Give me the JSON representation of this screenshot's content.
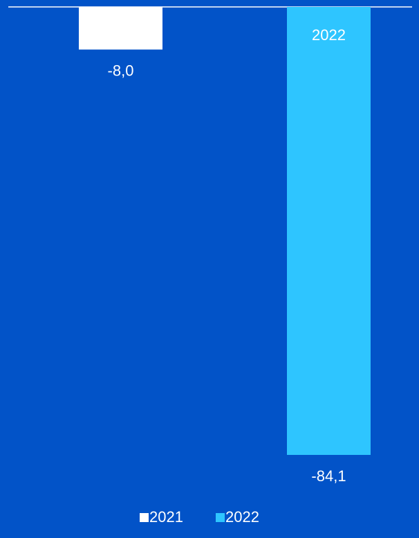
{
  "colors": {
    "background": "#0253C8",
    "baseline": "#FFFFFF",
    "text": "#FFFFFF"
  },
  "chart_data": {
    "type": "bar",
    "title": "",
    "xlabel": "",
    "ylabel": "",
    "ylim": [
      -84.1,
      0
    ],
    "grid": false,
    "legend_placement": "bottom-center",
    "series": [
      {
        "name": "2021",
        "color": "#FFFFFF",
        "values": [
          -8.0
        ],
        "value_labels": [
          "-8,0"
        ],
        "inside_label": ""
      },
      {
        "name": "2022",
        "color": "#2EC5FF",
        "values": [
          -84.1
        ],
        "value_labels": [
          "-84,1"
        ],
        "inside_label": "2022"
      }
    ]
  }
}
